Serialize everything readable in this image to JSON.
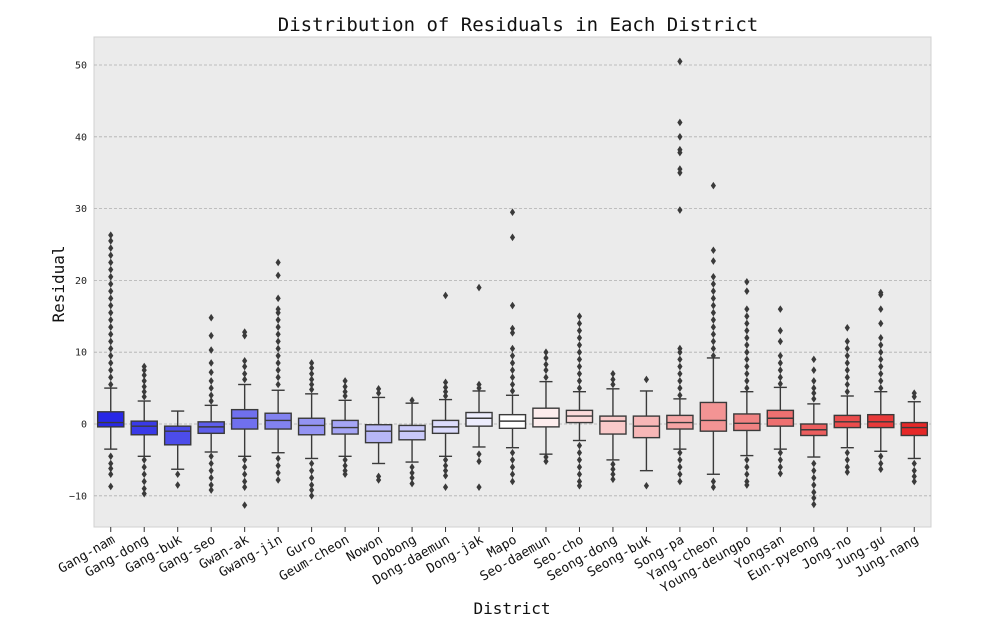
{
  "chart_data": {
    "type": "box",
    "title": "Distribution of Residuals in Each District",
    "xlabel": "District",
    "ylabel": "Residual",
    "ylim": [
      -14.5,
      54
    ],
    "yticks": [
      -10,
      0,
      10,
      20,
      30,
      40,
      50
    ],
    "grid": "y-dashed",
    "legend": "none",
    "colors": {
      "background": "#ebebeb",
      "grid": "#b0b0b0",
      "box_edge": "#3a3a3a",
      "outlier": "#3a3a3a",
      "low": "#2828e6",
      "mid": "#ffffff",
      "high": "#e62828"
    },
    "categories": [
      "Gang-nam",
      "Gang-dong",
      "Gang-buk",
      "Gang-seo",
      "Gwan-ak",
      "Gwang-jin",
      "Guro",
      "Geum-cheon",
      "Nowon",
      "Dobong",
      "Dong-daemun",
      "Dong-jak",
      "Mapo",
      "Seo-daemun",
      "Seo-cho",
      "Seong-dong",
      "Seong-buk",
      "Song-pa",
      "Yang-cheon",
      "Young-deungpo",
      "Yongsan",
      "Eun-pyeong",
      "Jong-no",
      "Jung-gu",
      "Jung-nang"
    ],
    "boxes": [
      {
        "q1": -0.4,
        "median": 0.2,
        "q3": 1.7,
        "whisker_low": -3.5,
        "whisker_high": 5.0,
        "outliers": [
          -4.5,
          -5.5,
          -6.2,
          -7,
          -8.7,
          5.5,
          6.5,
          7.5,
          8.5,
          9.5,
          10.5,
          11.5,
          12.5,
          13.5,
          14.5,
          15.5,
          16.5,
          17.5,
          18.5,
          19.5,
          20.5,
          21.5,
          22.5,
          23.5,
          24.5,
          25.5,
          26.3
        ]
      },
      {
        "q1": -1.5,
        "median": -0.3,
        "q3": 0.4,
        "whisker_low": -4.5,
        "whisker_high": 3.2,
        "outliers": [
          -5,
          -6,
          -7,
          -8,
          -9,
          -9.7,
          3.8,
          4.5,
          5.2,
          6,
          6.8,
          7.5,
          8
        ]
      },
      {
        "q1": -2.9,
        "median": -1.0,
        "q3": -0.3,
        "whisker_low": -6.3,
        "whisker_high": 1.8,
        "outliers": [
          -7,
          -8.5
        ]
      },
      {
        "q1": -1.3,
        "median": -0.4,
        "q3": 0.3,
        "whisker_low": -3.9,
        "whisker_high": 2.6,
        "outliers": [
          -4.5,
          -5.5,
          -6.5,
          -7.5,
          -8.5,
          -9.2,
          3.2,
          4,
          5,
          6,
          7.2,
          8.5,
          10.3,
          12.3,
          14.8
        ]
      },
      {
        "q1": -0.7,
        "median": 0.8,
        "q3": 2.0,
        "whisker_low": -4.5,
        "whisker_high": 5.5,
        "outliers": [
          -5,
          -6,
          -7,
          -8,
          -8.8,
          -11.3,
          6.2,
          7,
          8,
          8.8,
          12.3,
          12.8
        ]
      },
      {
        "q1": -0.7,
        "median": 0.5,
        "q3": 1.5,
        "whisker_low": -4.0,
        "whisker_high": 4.7,
        "outliers": [
          -4.8,
          -5.8,
          -6.8,
          -7.8,
          5.5,
          6.5,
          7.5,
          8.5,
          9.5,
          10.5,
          11.5,
          12.5,
          13.5,
          14.5,
          15.5,
          16,
          17.5,
          20.7,
          22.5
        ]
      },
      {
        "q1": -1.5,
        "median": -0.2,
        "q3": 0.8,
        "whisker_low": -4.8,
        "whisker_high": 4.2,
        "outliers": [
          -5.5,
          -6.5,
          -7.5,
          -8.5,
          -9.2,
          -10,
          4.8,
          5.5,
          6.2,
          7,
          7.8,
          8.5
        ]
      },
      {
        "q1": -1.4,
        "median": -0.5,
        "q3": 0.5,
        "whisker_low": -4.5,
        "whisker_high": 3.3,
        "outliers": [
          -5,
          -5.8,
          -6.5,
          -7,
          3.9,
          4.5,
          5.2,
          6
        ]
      },
      {
        "q1": -2.6,
        "median": -1.0,
        "q3": -0.1,
        "whisker_low": -5.5,
        "whisker_high": 3.7,
        "outliers": [
          -7.3,
          -7.8,
          4.3,
          4.9
        ]
      },
      {
        "q1": -2.2,
        "median": -1.0,
        "q3": -0.2,
        "whisker_low": -5.3,
        "whisker_high": 2.9,
        "outliers": [
          -6,
          -6.8,
          -7.5,
          -8.3,
          3.3
        ]
      },
      {
        "q1": -1.3,
        "median": -0.4,
        "q3": 0.5,
        "whisker_low": -4.5,
        "whisker_high": 3.4,
        "outliers": [
          -5,
          -5.8,
          -6.5,
          -7.2,
          -8.8,
          3.9,
          4.5,
          5.1,
          5.8,
          17.9
        ]
      },
      {
        "q1": -0.3,
        "median": 0.8,
        "q3": 1.6,
        "whisker_low": -3.2,
        "whisker_high": 4.6,
        "outliers": [
          -4.2,
          -5.2,
          -8.8,
          5,
          5.5,
          19
        ]
      },
      {
        "q1": -0.6,
        "median": 0.4,
        "q3": 1.3,
        "whisker_low": -3.3,
        "whisker_high": 4.0,
        "outliers": [
          -4,
          -5,
          -6,
          -7,
          -8,
          4.6,
          5.5,
          6.5,
          7.5,
          8.5,
          9.5,
          10.5,
          12.7,
          13.3,
          16.5,
          26,
          29.5
        ]
      },
      {
        "q1": -0.4,
        "median": 0.8,
        "q3": 2.2,
        "whisker_low": -4.2,
        "whisker_high": 5.9,
        "outliers": [
          -4.6,
          -5.2,
          6.5,
          7.5,
          8.3,
          9.2,
          10
        ]
      },
      {
        "q1": 0.2,
        "median": 1.1,
        "q3": 1.9,
        "whisker_low": -2.3,
        "whisker_high": 4.5,
        "outliers": [
          -3,
          -4,
          -5,
          -6,
          -7,
          -8,
          -8.6,
          5,
          6,
          7,
          8,
          9,
          10,
          11,
          12,
          13,
          14,
          15
        ]
      },
      {
        "q1": -1.4,
        "median": 0.4,
        "q3": 1.1,
        "whisker_low": -5.0,
        "whisker_high": 4.9,
        "outliers": [
          -5.6,
          -6.3,
          -7,
          -7.7,
          5.5,
          6.2,
          7
        ]
      },
      {
        "q1": -1.9,
        "median": -0.3,
        "q3": 1.1,
        "whisker_low": -6.5,
        "whisker_high": 4.6,
        "outliers": [
          -8.6,
          6.2
        ]
      },
      {
        "q1": -0.7,
        "median": 0.2,
        "q3": 1.2,
        "whisker_low": -3.5,
        "whisker_high": 3.5,
        "outliers": [
          -4,
          -5,
          -6,
          -7,
          -8,
          4,
          5,
          6,
          7,
          8,
          9,
          10,
          10.5,
          29.8,
          35,
          35.5,
          37.8,
          38.2,
          40,
          42,
          50.5
        ]
      },
      {
        "q1": -1.0,
        "median": 0.5,
        "q3": 3.0,
        "whisker_low": -7.0,
        "whisker_high": 9.2,
        "outliers": [
          -8,
          -8.8,
          9.5,
          10.5,
          11.5,
          12.5,
          13.5,
          14.5,
          15.5,
          16.5,
          17.5,
          18.5,
          19.5,
          20.5,
          22.7,
          24.2,
          33.2
        ]
      },
      {
        "q1": -0.9,
        "median": 0.1,
        "q3": 1.4,
        "whisker_low": -4.4,
        "whisker_high": 4.5,
        "outliers": [
          -5,
          -6,
          -7,
          -8,
          -8.5,
          5,
          6,
          7,
          8,
          9,
          10,
          11,
          12,
          13,
          14,
          15,
          16,
          18.5,
          19.8
        ]
      },
      {
        "q1": -0.3,
        "median": 0.8,
        "q3": 1.9,
        "whisker_low": -3.5,
        "whisker_high": 5.1,
        "outliers": [
          -4,
          -5,
          -6,
          -6.9,
          5.6,
          6.5,
          7.5,
          8.5,
          9.5,
          11.5,
          13,
          16
        ]
      },
      {
        "q1": -1.6,
        "median": -0.8,
        "q3": 0.0,
        "whisker_low": -4.6,
        "whisker_high": 2.8,
        "outliers": [
          -5.5,
          -6.5,
          -7.5,
          -8.5,
          -9.5,
          -10.3,
          -11.2,
          3.5,
          4.3,
          5,
          6,
          7.5,
          9
        ]
      },
      {
        "q1": -0.5,
        "median": 0.3,
        "q3": 1.2,
        "whisker_low": -3.3,
        "whisker_high": 3.9,
        "outliers": [
          -4,
          -5,
          -6,
          -6.7,
          4.5,
          5.5,
          6.5,
          7.5,
          8.5,
          9.5,
          10.5,
          11.5,
          13.4
        ]
      },
      {
        "q1": -0.5,
        "median": 0.3,
        "q3": 1.3,
        "whisker_low": -3.8,
        "whisker_high": 4.5,
        "outliers": [
          -4.5,
          -5.5,
          -6.3,
          5,
          6,
          7,
          8,
          9,
          10,
          11,
          12,
          14,
          16,
          18,
          18.3
        ]
      },
      {
        "q1": -1.6,
        "median": -0.5,
        "q3": 0.2,
        "whisker_low": -4.8,
        "whisker_high": 3.1,
        "outliers": [
          -5.5,
          -6.5,
          -7.3,
          -8,
          3.8,
          4.3
        ]
      }
    ]
  }
}
